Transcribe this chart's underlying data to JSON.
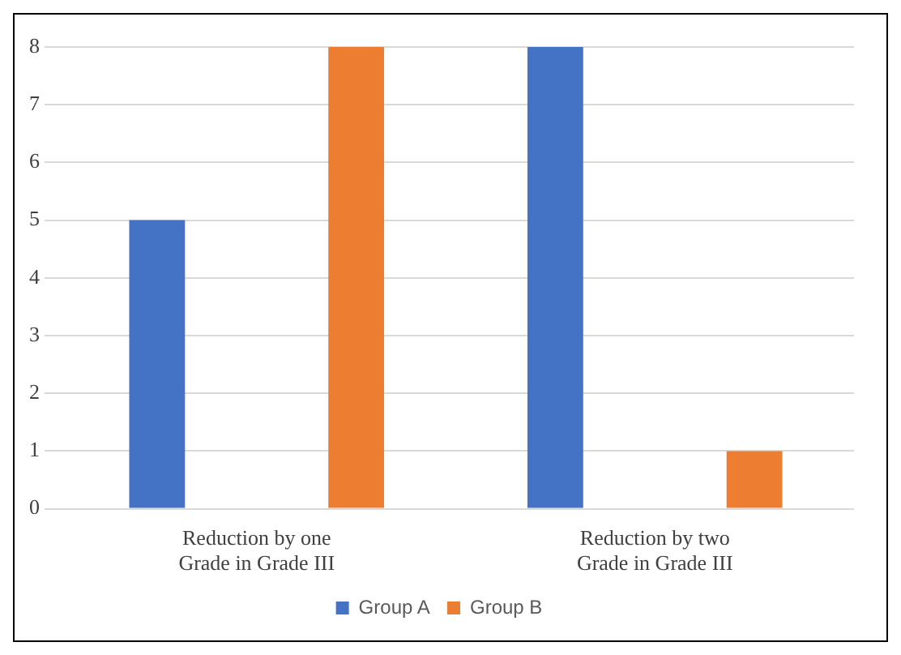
{
  "chart_data": {
    "type": "bar",
    "categories": [
      "Reduction by one Grade in Grade III",
      "Reduction by two Grade in Grade III"
    ],
    "series": [
      {
        "name": "Group A",
        "color": "#4472c4",
        "values": [
          5,
          8
        ]
      },
      {
        "name": "Group B",
        "color": "#ed7d31",
        "values": [
          8,
          1
        ]
      }
    ],
    "ylim": [
      0,
      8
    ],
    "yticks": [
      0,
      1,
      2,
      3,
      4,
      5,
      6,
      7,
      8
    ],
    "grid": "y",
    "legend": "bottom"
  }
}
